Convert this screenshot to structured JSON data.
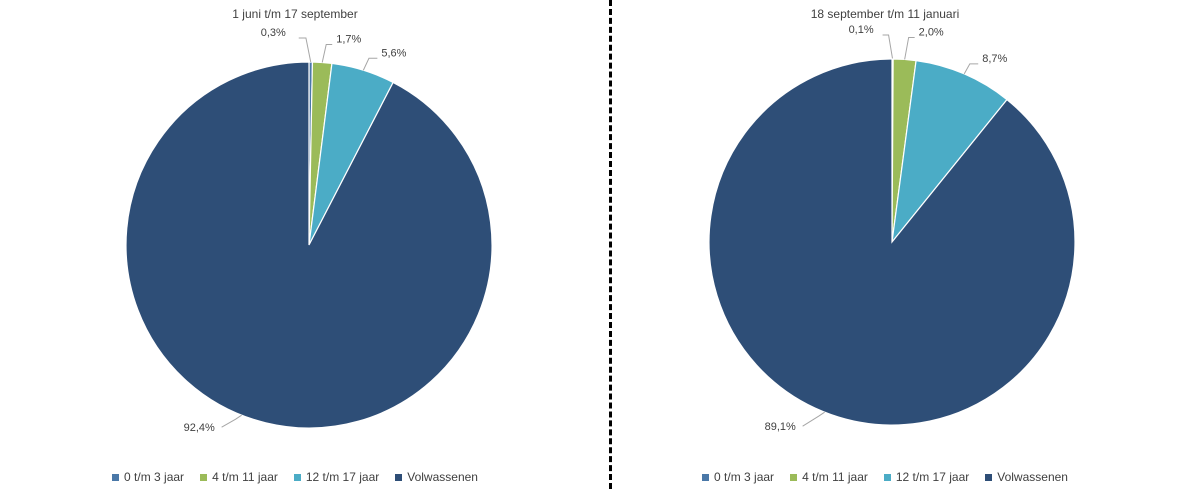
{
  "colors": {
    "0 t/m 3 jaar": "#4a78a8",
    "4 t/m 11 jaar": "#9bbb59",
    "12 t/m 17 jaar": "#4bacc6",
    "Volwassenen": "#2e4e77"
  },
  "chart_data": [
    {
      "type": "pie",
      "title": "1 juni t/m 17 september",
      "categories": [
        "0 t/m 3 jaar",
        "4 t/m 11 jaar",
        "12 t/m 17 jaar",
        "Volwassenen"
      ],
      "values": [
        0.3,
        1.7,
        5.6,
        92.4
      ],
      "data_labels": [
        "0,3%",
        "1,7%",
        "5,6%",
        "92,4%"
      ],
      "legend_position": "bottom"
    },
    {
      "type": "pie",
      "title": "18 september t/m 11 januari",
      "categories": [
        "0 t/m 3 jaar",
        "4 t/m 11 jaar",
        "12 t/m 17 jaar",
        "Volwassenen"
      ],
      "values": [
        0.1,
        2.0,
        8.7,
        89.1
      ],
      "data_labels": [
        "0,1%",
        "2,0%",
        "8,7%",
        "89,1%"
      ],
      "legend_position": "bottom"
    }
  ]
}
